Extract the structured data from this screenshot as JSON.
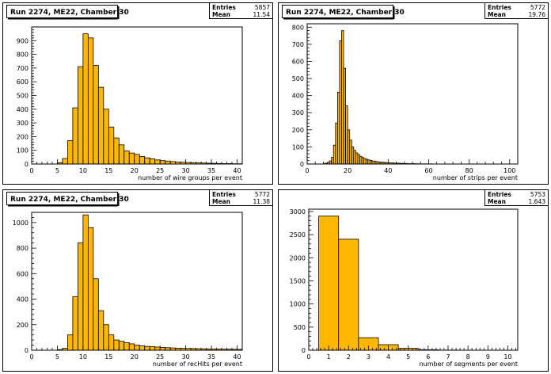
{
  "pads": [
    {
      "title": "Run 2274, ME22, Chamber 30",
      "stats": {
        "entries_label": "Entries",
        "entries": "5857",
        "mean_label": "Mean",
        "mean": "11.54"
      },
      "chart_data": {
        "type": "histogram",
        "xlabel": "number of wire groups per event",
        "xlim": [
          0,
          41
        ],
        "ylim": [
          0,
          1000
        ],
        "xticks": [
          0,
          5,
          10,
          15,
          20,
          25,
          30,
          35,
          40
        ],
        "yticks": [
          0,
          100,
          200,
          300,
          400,
          500,
          600,
          700,
          800,
          900
        ],
        "bin_width": 1,
        "bin_start": 0,
        "counts": [
          0,
          0,
          0,
          0,
          0,
          10,
          40,
          170,
          410,
          710,
          950,
          920,
          720,
          560,
          400,
          270,
          190,
          140,
          95,
          80,
          70,
          55,
          45,
          38,
          30,
          25,
          22,
          18,
          15,
          13,
          11,
          9,
          8,
          7,
          6,
          5,
          4,
          3,
          3,
          2,
          2
        ]
      }
    },
    {
      "title": "Run 2274, ME22, Chamber 30",
      "stats": {
        "entries_label": "Entries",
        "entries": "5772",
        "mean_label": "Mean",
        "mean": "19.76"
      },
      "chart_data": {
        "type": "histogram",
        "xlabel": "number of strips per event",
        "xlim": [
          0,
          104
        ],
        "ylim": [
          0,
          820
        ],
        "xticks": [
          0,
          20,
          40,
          60,
          80,
          100
        ],
        "yticks": [
          0,
          100,
          200,
          300,
          400,
          500,
          600,
          700,
          800
        ],
        "bin_width": 1,
        "bin_start": 0,
        "counts": [
          0,
          0,
          0,
          0,
          0,
          0,
          0,
          0,
          2,
          5,
          10,
          18,
          40,
          110,
          240,
          420,
          720,
          780,
          560,
          340,
          200,
          140,
          100,
          80,
          65,
          55,
          45,
          38,
          32,
          28,
          24,
          21,
          18,
          16,
          14,
          12,
          11,
          10,
          9,
          8,
          7,
          6,
          6,
          5,
          5,
          4,
          4,
          3,
          3,
          3,
          2,
          2,
          2,
          2,
          1,
          1,
          1,
          1,
          1,
          1,
          1,
          1
        ]
      }
    },
    {
      "title": "Run 2274, ME22, Chamber 30",
      "stats": {
        "entries_label": "Entries",
        "entries": "5772",
        "mean_label": "Mean",
        "mean": "11.38"
      },
      "chart_data": {
        "type": "histogram",
        "xlabel": "number of recHits per event",
        "xlim": [
          0,
          41
        ],
        "ylim": [
          0,
          1080
        ],
        "xticks": [
          0,
          5,
          10,
          15,
          20,
          25,
          30,
          35,
          40
        ],
        "yticks": [
          0,
          200,
          400,
          600,
          800,
          1000
        ],
        "bin_width": 1,
        "bin_start": 0,
        "counts": [
          0,
          0,
          0,
          0,
          0,
          5,
          15,
          120,
          420,
          840,
          1060,
          960,
          560,
          310,
          200,
          120,
          80,
          70,
          60,
          50,
          40,
          35,
          30,
          28,
          25,
          22,
          20,
          18,
          16,
          15,
          14,
          13,
          12,
          11,
          10,
          10,
          9,
          8,
          8,
          7,
          7
        ]
      }
    },
    {
      "title": "",
      "stats": {
        "entries_label": "Entries",
        "entries": "5753",
        "mean_label": "Mean",
        "mean": "1.643"
      },
      "chart_data": {
        "type": "histogram",
        "xlabel": "number of segments per event",
        "xlim": [
          0,
          10.5
        ],
        "ylim": [
          0,
          3050
        ],
        "xticks": [
          0,
          1,
          2,
          3,
          4,
          5,
          6,
          7,
          8,
          9,
          10
        ],
        "yticks": [
          0,
          500,
          1000,
          1500,
          2000,
          2500,
          3000
        ],
        "bin_width": 1,
        "bin_start": 0.5,
        "counts": [
          2900,
          2400,
          270,
          120,
          40,
          10,
          3,
          1,
          0,
          0
        ]
      }
    }
  ],
  "colors": {
    "fill": "#ffb800",
    "line": "#000000",
    "background": "#ffffff",
    "frame": "#000000"
  }
}
